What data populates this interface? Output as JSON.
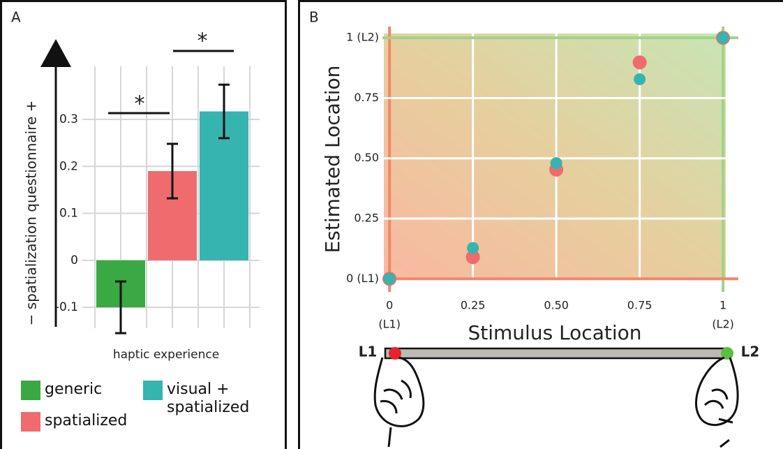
{
  "chart_data": [
    {
      "type": "bar",
      "panel": "A",
      "ylabel": "− spatialization questionnaire +",
      "xlabel": "haptic experience",
      "categories": [
        "generic",
        "spatialized",
        "visual + spatialized"
      ],
      "colors": [
        "#3aa843",
        "#ef6b6e",
        "#36b4b0"
      ],
      "values": [
        -0.1,
        0.19,
        0.317
      ],
      "errors": [
        0.055,
        0.058,
        0.057
      ],
      "ylim": [
        -0.14,
        0.41
      ],
      "yticks": [
        -0.1,
        0,
        0.1,
        0.2,
        0.3
      ],
      "grid": true,
      "annotations": [
        "*",
        "*"
      ]
    },
    {
      "type": "scatter",
      "panel": "B",
      "xlabel": "Stimulus Location",
      "ylabel": "Estimated Location",
      "xlim": [
        -0.038,
        1.05
      ],
      "ylim": [
        -0.06,
        1.07
      ],
      "xticks": [
        0,
        0.25,
        {
          "value": 0.5,
          "label": "0.50"
        },
        0.75,
        1
      ],
      "yticks": [
        {
          "value": 0,
          "label": "0 (L1)"
        },
        0.25,
        {
          "value": 0.5,
          "label": "0.50"
        },
        0.75,
        {
          "value": 1,
          "label": "1 (L2)"
        }
      ],
      "grid": true,
      "series": [
        {
          "color": "#ef6b6e",
          "x": [
            0,
            0.25,
            0.5,
            0.75,
            1
          ],
          "values": [
            0,
            0.09,
            0.453,
            0.898,
            1
          ]
        },
        {
          "color": "#36b4b0",
          "x": [
            0,
            0.25,
            0.5,
            0.75,
            1
          ],
          "values": [
            0,
            0.128,
            0.48,
            0.828,
            1
          ]
        }
      ],
      "annotations": [
        "(L1)",
        "(L2)",
        "L1",
        "L2"
      ]
    }
  ]
}
